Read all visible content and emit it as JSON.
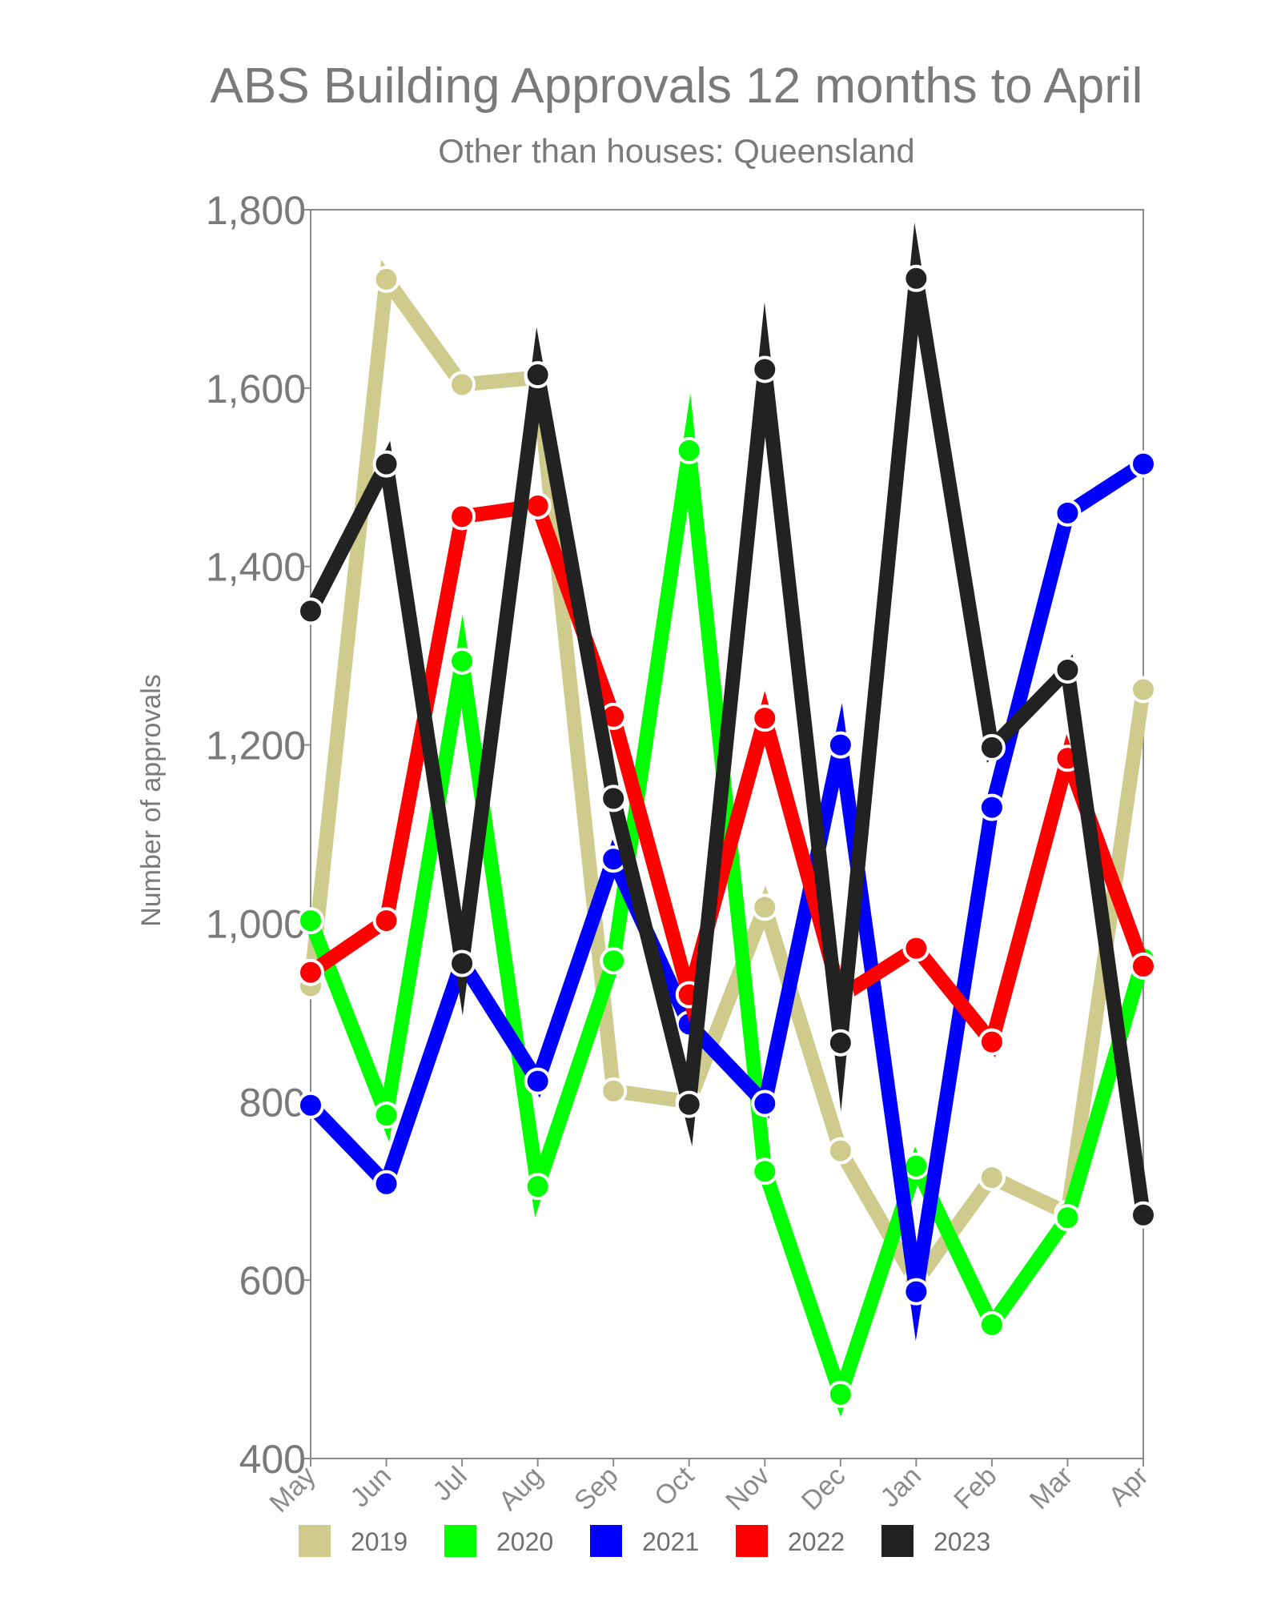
{
  "chart_data": {
    "type": "line",
    "title": "ABS Building Approvals 12 months to April",
    "subtitle": "Other than houses: Queensland",
    "ylabel": "Number of approvals",
    "xlabel": "",
    "categories": [
      "May",
      "Jun",
      "Jul",
      "Aug",
      "Sep",
      "Oct",
      "Nov",
      "Dec",
      "Jan",
      "Feb",
      "Mar",
      "Apr"
    ],
    "ylim": [
      400,
      1800
    ],
    "yticks": [
      400,
      600,
      800,
      1000,
      1200,
      1400,
      1600,
      1800
    ],
    "ytick_labels": [
      "400",
      "600",
      "800",
      "1,000",
      "1,200",
      "1,400",
      "1,600",
      "1,800"
    ],
    "grid": false,
    "legend_position": "bottom",
    "series": [
      {
        "name": "2019",
        "color": "#cfcb8c",
        "values": [
          930,
          1722,
          1604,
          1612,
          812,
          800,
          1018,
          745,
          598,
          715,
          675,
          1262
        ]
      },
      {
        "name": "2020",
        "color": "#00ff00",
        "values": [
          1003,
          785,
          1294,
          705,
          958,
          1530,
          722,
          472,
          728,
          550,
          670,
          960
        ]
      },
      {
        "name": "2021",
        "color": "#0000ff",
        "values": [
          796,
          708,
          957,
          823,
          1072,
          887,
          798,
          1200,
          587,
          1130,
          1460,
          1515
        ]
      },
      {
        "name": "2022",
        "color": "#ff0000",
        "values": [
          945,
          1003,
          1456,
          1468,
          1232,
          920,
          1230,
          918,
          972,
          867,
          1185,
          952
        ]
      },
      {
        "name": "2023",
        "color": "#222222",
        "values": [
          1350,
          1515,
          955,
          1615,
          1140,
          797,
          1621,
          866,
          1723,
          1197,
          1284,
          673
        ]
      }
    ]
  }
}
